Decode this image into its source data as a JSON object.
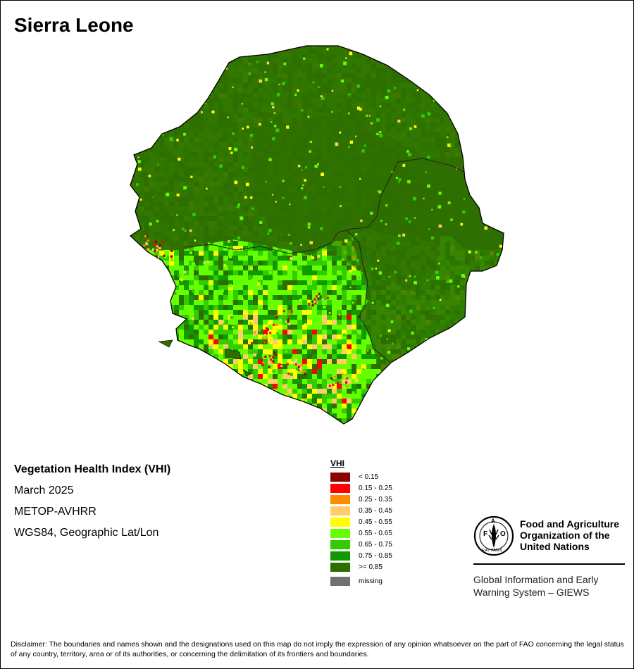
{
  "title": "Sierra Leone",
  "info": {
    "index_name": "Vegetation Health Index (VHI)",
    "period": "March 2025",
    "sensor": "METOP-AVHRR",
    "projection": "WGS84, Geographic Lat/Lon"
  },
  "legend": {
    "title": "VHI",
    "classes": [
      {
        "label": "< 0.15",
        "color": "#8b0000"
      },
      {
        "label": "0.15 - 0.25",
        "color": "#ff0000"
      },
      {
        "label": "0.25 - 0.35",
        "color": "#ff8c00"
      },
      {
        "label": "0.35 - 0.45",
        "color": "#ffcc66"
      },
      {
        "label": "0.45 - 0.55",
        "color": "#ffff00"
      },
      {
        "label": "0.55 - 0.65",
        "color": "#66ff00"
      },
      {
        "label": "0.65 - 0.75",
        "color": "#33cc00"
      },
      {
        "label": "0.75 - 0.85",
        "color": "#119900"
      },
      {
        "label": ">= 0.85",
        "color": "#2e6e00"
      }
    ],
    "missing": {
      "label": "missing",
      "color": "#707070"
    }
  },
  "organization": {
    "line1": "Food and Agriculture",
    "line2": "Organization of the",
    "line3": "United Nations",
    "emblem_text": "FIAT PANIS"
  },
  "program": {
    "line1": "Global Information and Early",
    "line2": "Warning System – GIEWS"
  },
  "disclaimer": "Disclaimer: The boundaries and names shown and the designations used on this map do not imply the expression of any opinion whatsoever on the part of FAO concerning the legal status of any country, territory, area or of its authorities, or concerning the delimitation of its frontiers and boundaries."
}
